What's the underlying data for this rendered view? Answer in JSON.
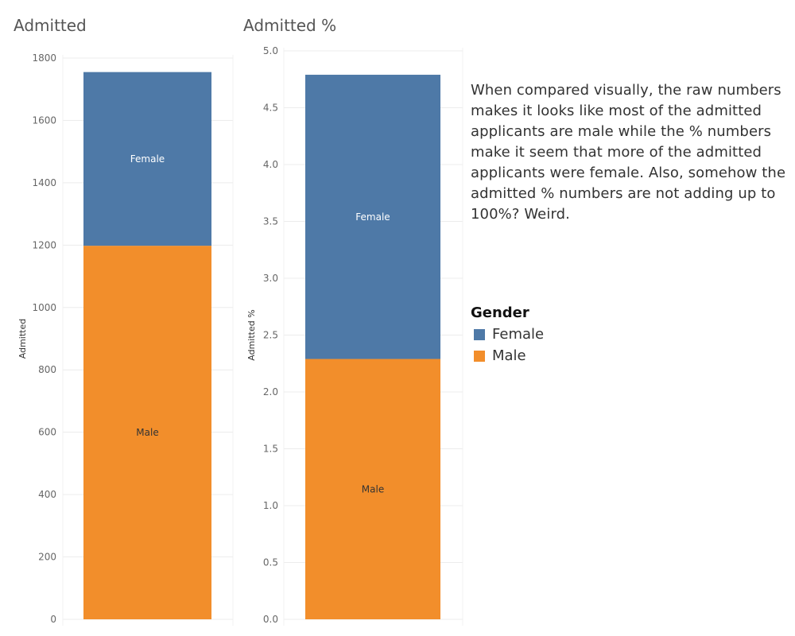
{
  "chart_data": [
    {
      "type": "bar",
      "stacked": true,
      "title": "Admitted",
      "ylabel": "Admitted",
      "xlabel": "",
      "ylim": [
        0,
        1800
      ],
      "yticks": [
        0,
        200,
        400,
        600,
        800,
        1000,
        1200,
        1400,
        1600,
        1800
      ],
      "ytick_labels": [
        "0",
        "200",
        "400",
        "600",
        "800",
        "1000",
        "1200",
        "1400",
        "1600",
        "1800"
      ],
      "grid": true,
      "categories": [
        ""
      ],
      "series": [
        {
          "name": "Male",
          "values": [
            1198
          ],
          "color": "#f28e2b",
          "label_color": "#333333"
        },
        {
          "name": "Female",
          "values": [
            557
          ],
          "color": "#4e79a7",
          "label_color": "#ffffff"
        }
      ]
    },
    {
      "type": "bar",
      "stacked": true,
      "title": "Admitted %",
      "ylabel": "Admitted %",
      "xlabel": "",
      "ylim": [
        0,
        5
      ],
      "yticks": [
        0,
        0.5,
        1,
        1.5,
        2,
        2.5,
        3,
        3.5,
        4,
        4.5,
        5
      ],
      "ytick_labels": [
        "0.0",
        "0.5",
        "1.0",
        "1.5",
        "2.0",
        "2.5",
        "3.0",
        "3.5",
        "4.0",
        "4.5",
        "5.0"
      ],
      "grid": true,
      "categories": [
        ""
      ],
      "series": [
        {
          "name": "Male",
          "values": [
            2.29
          ],
          "color": "#f28e2b",
          "label_color": "#333333"
        },
        {
          "name": "Female",
          "values": [
            2.5
          ],
          "color": "#4e79a7",
          "label_color": "#ffffff"
        }
      ]
    }
  ],
  "annotation": {
    "text": "When compared visually, the raw numbers makes it looks like most of the admitted applicants are male while the % numbers make it seem that more of the admitted applicants were female. Also, somehow the admitted % numbers are not adding up to 100%? Weird."
  },
  "legend": {
    "title": "Gender",
    "placement": "right",
    "items": [
      {
        "label": "Female",
        "color": "#4e79a7"
      },
      {
        "label": "Male",
        "color": "#f28e2b"
      }
    ]
  }
}
